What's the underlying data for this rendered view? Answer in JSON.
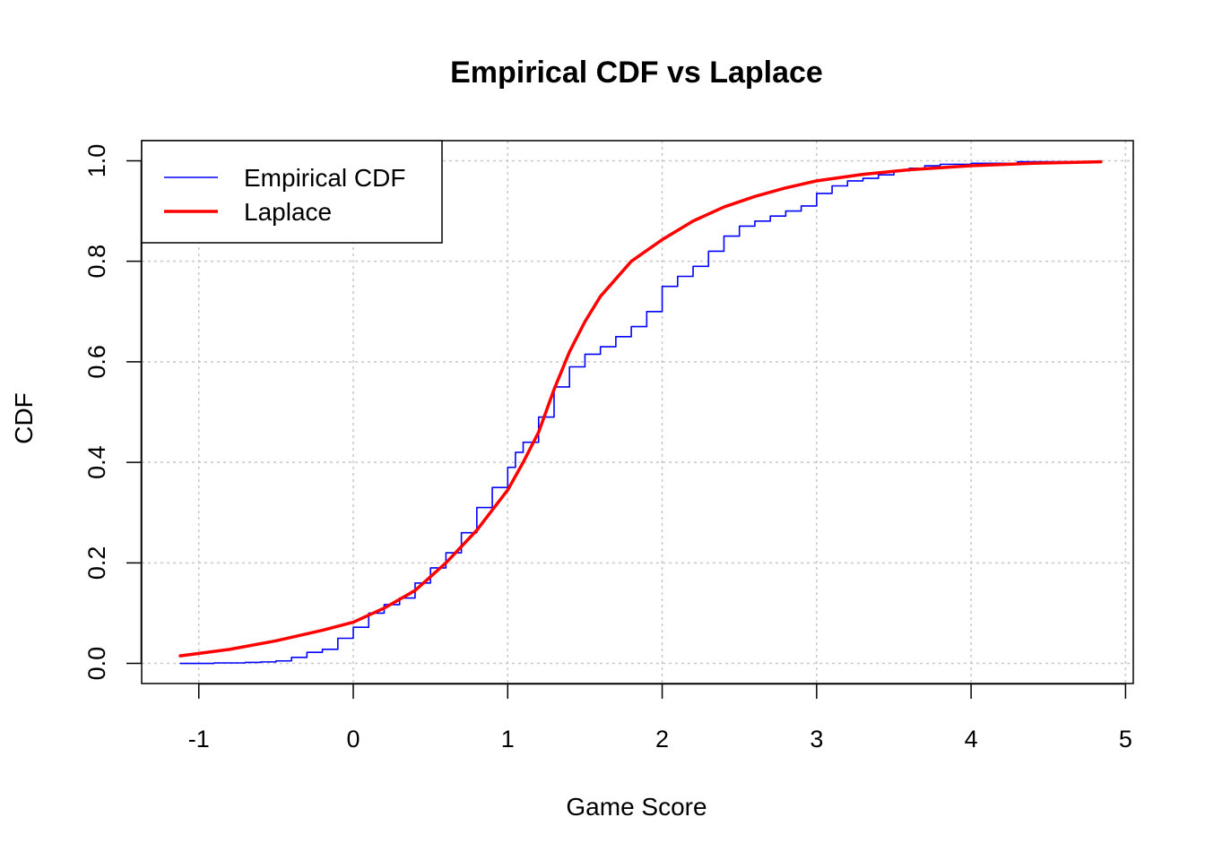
{
  "chart_data": {
    "type": "line",
    "title": "Empirical CDF vs Laplace",
    "xlabel": "Game Score",
    "ylabel": "CDF",
    "xlim": [
      -1.37,
      5.05
    ],
    "ylim": [
      -0.04,
      1.04
    ],
    "x_ticks": [
      -1,
      0,
      1,
      2,
      3,
      4,
      5
    ],
    "y_ticks": [
      0.0,
      0.2,
      0.4,
      0.6,
      0.8,
      1.0
    ],
    "x_tick_labels": [
      "-1",
      "0",
      "1",
      "2",
      "3",
      "4",
      "5"
    ],
    "y_tick_labels": [
      "0.0",
      "0.2",
      "0.4",
      "0.6",
      "0.8",
      "1.0"
    ],
    "grid": true,
    "legend_position": "top-left",
    "series": [
      {
        "name": "Empirical CDF",
        "color": "#0000ff",
        "style": "step",
        "x": [
          -1.12,
          -0.9,
          -0.7,
          -0.6,
          -0.5,
          -0.4,
          -0.3,
          -0.2,
          -0.1,
          0.0,
          0.1,
          0.2,
          0.3,
          0.4,
          0.5,
          0.6,
          0.7,
          0.8,
          0.9,
          1.0,
          1.05,
          1.1,
          1.2,
          1.3,
          1.4,
          1.5,
          1.6,
          1.7,
          1.8,
          1.9,
          2.0,
          2.1,
          2.2,
          2.3,
          2.4,
          2.5,
          2.6,
          2.7,
          2.8,
          2.9,
          3.0,
          3.1,
          3.2,
          3.3,
          3.4,
          3.5,
          3.6,
          3.7,
          3.8,
          4.0,
          4.3,
          4.84
        ],
        "y": [
          0.0,
          0.001,
          0.002,
          0.003,
          0.005,
          0.012,
          0.022,
          0.028,
          0.05,
          0.072,
          0.1,
          0.117,
          0.13,
          0.16,
          0.19,
          0.22,
          0.26,
          0.31,
          0.35,
          0.39,
          0.42,
          0.44,
          0.49,
          0.55,
          0.59,
          0.615,
          0.63,
          0.65,
          0.67,
          0.7,
          0.75,
          0.77,
          0.79,
          0.82,
          0.85,
          0.87,
          0.88,
          0.89,
          0.9,
          0.91,
          0.935,
          0.95,
          0.96,
          0.965,
          0.972,
          0.98,
          0.985,
          0.99,
          0.993,
          0.995,
          0.998,
          1.0
        ]
      },
      {
        "name": "Laplace",
        "color": "#ff0000",
        "style": "smooth",
        "x": [
          -1.12,
          -0.8,
          -0.5,
          -0.2,
          0.0,
          0.2,
          0.4,
          0.6,
          0.8,
          1.0,
          1.1,
          1.2,
          1.3,
          1.4,
          1.5,
          1.6,
          1.8,
          2.0,
          2.2,
          2.4,
          2.6,
          2.8,
          3.0,
          3.3,
          3.6,
          4.0,
          4.4,
          4.84
        ],
        "y": [
          0.015,
          0.028,
          0.045,
          0.066,
          0.082,
          0.11,
          0.145,
          0.2,
          0.265,
          0.345,
          0.4,
          0.46,
          0.545,
          0.62,
          0.68,
          0.73,
          0.8,
          0.843,
          0.88,
          0.908,
          0.929,
          0.946,
          0.96,
          0.973,
          0.982,
          0.99,
          0.995,
          0.998
        ]
      }
    ]
  }
}
